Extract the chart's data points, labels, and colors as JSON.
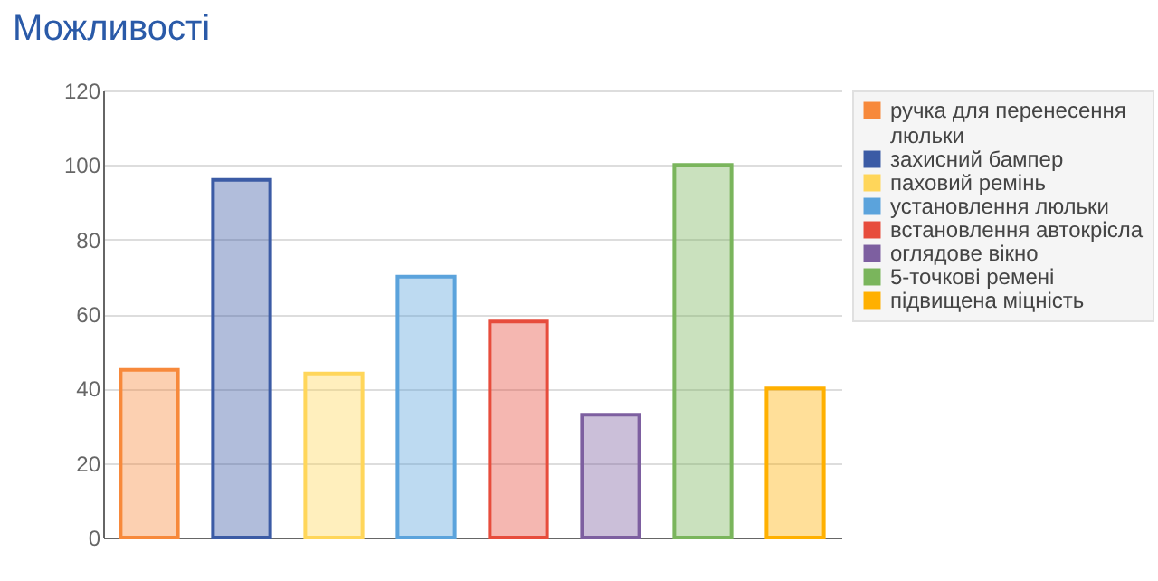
{
  "chart_data": {
    "type": "bar",
    "title": "Можливості",
    "categories": [
      null,
      null,
      null,
      null,
      null,
      null,
      null,
      null
    ],
    "series": [
      {
        "name": "ручка для перенесення люльки",
        "color": "#f7893b",
        "values": [
          45,
          null,
          null,
          null,
          null,
          null,
          null,
          null
        ]
      },
      {
        "name": "захисний бампер",
        "color": "#3b5ba5",
        "values": [
          null,
          96,
          null,
          null,
          null,
          null,
          null,
          null
        ]
      },
      {
        "name": "паховий ремінь",
        "color": "#ffd65a",
        "values": [
          null,
          null,
          44,
          null,
          null,
          null,
          null,
          null
        ]
      },
      {
        "name": "установлення люльки",
        "color": "#5ba3dc",
        "values": [
          null,
          null,
          null,
          70,
          null,
          null,
          null,
          null
        ]
      },
      {
        "name": "встановлення автокрісла",
        "color": "#e74c3c",
        "values": [
          null,
          null,
          null,
          null,
          58,
          null,
          null,
          null
        ]
      },
      {
        "name": "оглядове вікно",
        "color": "#7d5fa0",
        "values": [
          null,
          null,
          null,
          null,
          null,
          33,
          null,
          null
        ]
      },
      {
        "name": "5-точкові ремені",
        "color": "#7ab55c",
        "values": [
          null,
          null,
          null,
          null,
          null,
          null,
          100,
          null
        ]
      },
      {
        "name": "підвищена міцність",
        "color": "#ffb000",
        "values": [
          null,
          null,
          null,
          null,
          null,
          null,
          null,
          40
        ]
      }
    ],
    "ylim": [
      0,
      120
    ],
    "yticks": [
      0,
      20,
      40,
      60,
      80,
      100,
      120
    ],
    "grid": "y",
    "legend": "right",
    "tick_labels": "y"
  }
}
